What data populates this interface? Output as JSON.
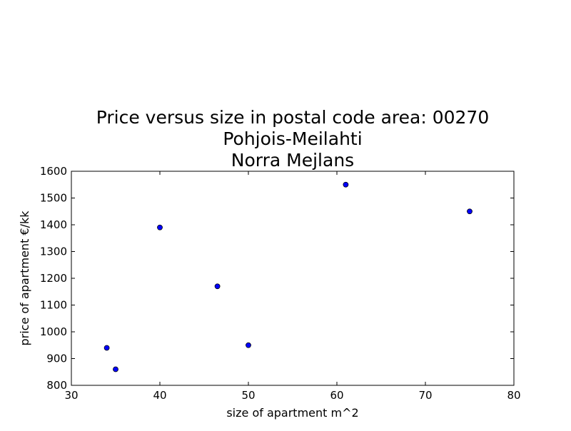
{
  "chart_data": {
    "type": "scatter",
    "title_lines": [
      "Price versus size in postal code area: 00270",
      "Pohjois-Meilahti",
      "Norra Mejlans"
    ],
    "xlabel": "size of apartment m^2",
    "ylabel": "price of apartment €/kk",
    "xlim": [
      30,
      80
    ],
    "ylim": [
      800,
      1600
    ],
    "xticks": [
      "30",
      "40",
      "50",
      "60",
      "70",
      "80"
    ],
    "yticks": [
      "800",
      "900",
      "1000",
      "1100",
      "1200",
      "1300",
      "1400",
      "1500",
      "1600"
    ],
    "grid": false,
    "legend": false,
    "marker_color": "#0000ff",
    "points": [
      {
        "x": 34,
        "y": 940
      },
      {
        "x": 35,
        "y": 860
      },
      {
        "x": 40,
        "y": 1390
      },
      {
        "x": 46.5,
        "y": 1170
      },
      {
        "x": 50,
        "y": 950
      },
      {
        "x": 61,
        "y": 1550
      },
      {
        "x": 75,
        "y": 1450
      }
    ]
  }
}
